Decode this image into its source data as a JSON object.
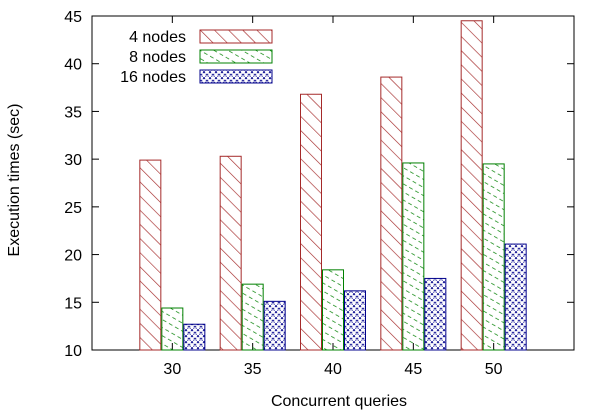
{
  "chart_data": {
    "type": "bar",
    "xlabel": "Concurrent queries",
    "ylabel": "Execution times (sec)",
    "ylim": [
      10,
      45
    ],
    "yticks": [
      10,
      15,
      20,
      25,
      30,
      35,
      40,
      45
    ],
    "categories": [
      "30",
      "35",
      "40",
      "45",
      "50"
    ],
    "legend_position": "top-left",
    "grid": false,
    "series": [
      {
        "name": "4 nodes",
        "color": "#a52a2a",
        "pattern": "diagonal-lines",
        "values": [
          29.9,
          30.3,
          36.8,
          38.6,
          44.5
        ]
      },
      {
        "name": "8 nodes",
        "color": "#008000",
        "pattern": "dashed-diagonal",
        "values": [
          14.4,
          16.9,
          18.4,
          29.6,
          29.5
        ]
      },
      {
        "name": "16 nodes",
        "color": "#00008b",
        "pattern": "dots-crosshatch",
        "values": [
          12.7,
          15.1,
          16.2,
          17.5,
          21.1
        ]
      }
    ]
  }
}
